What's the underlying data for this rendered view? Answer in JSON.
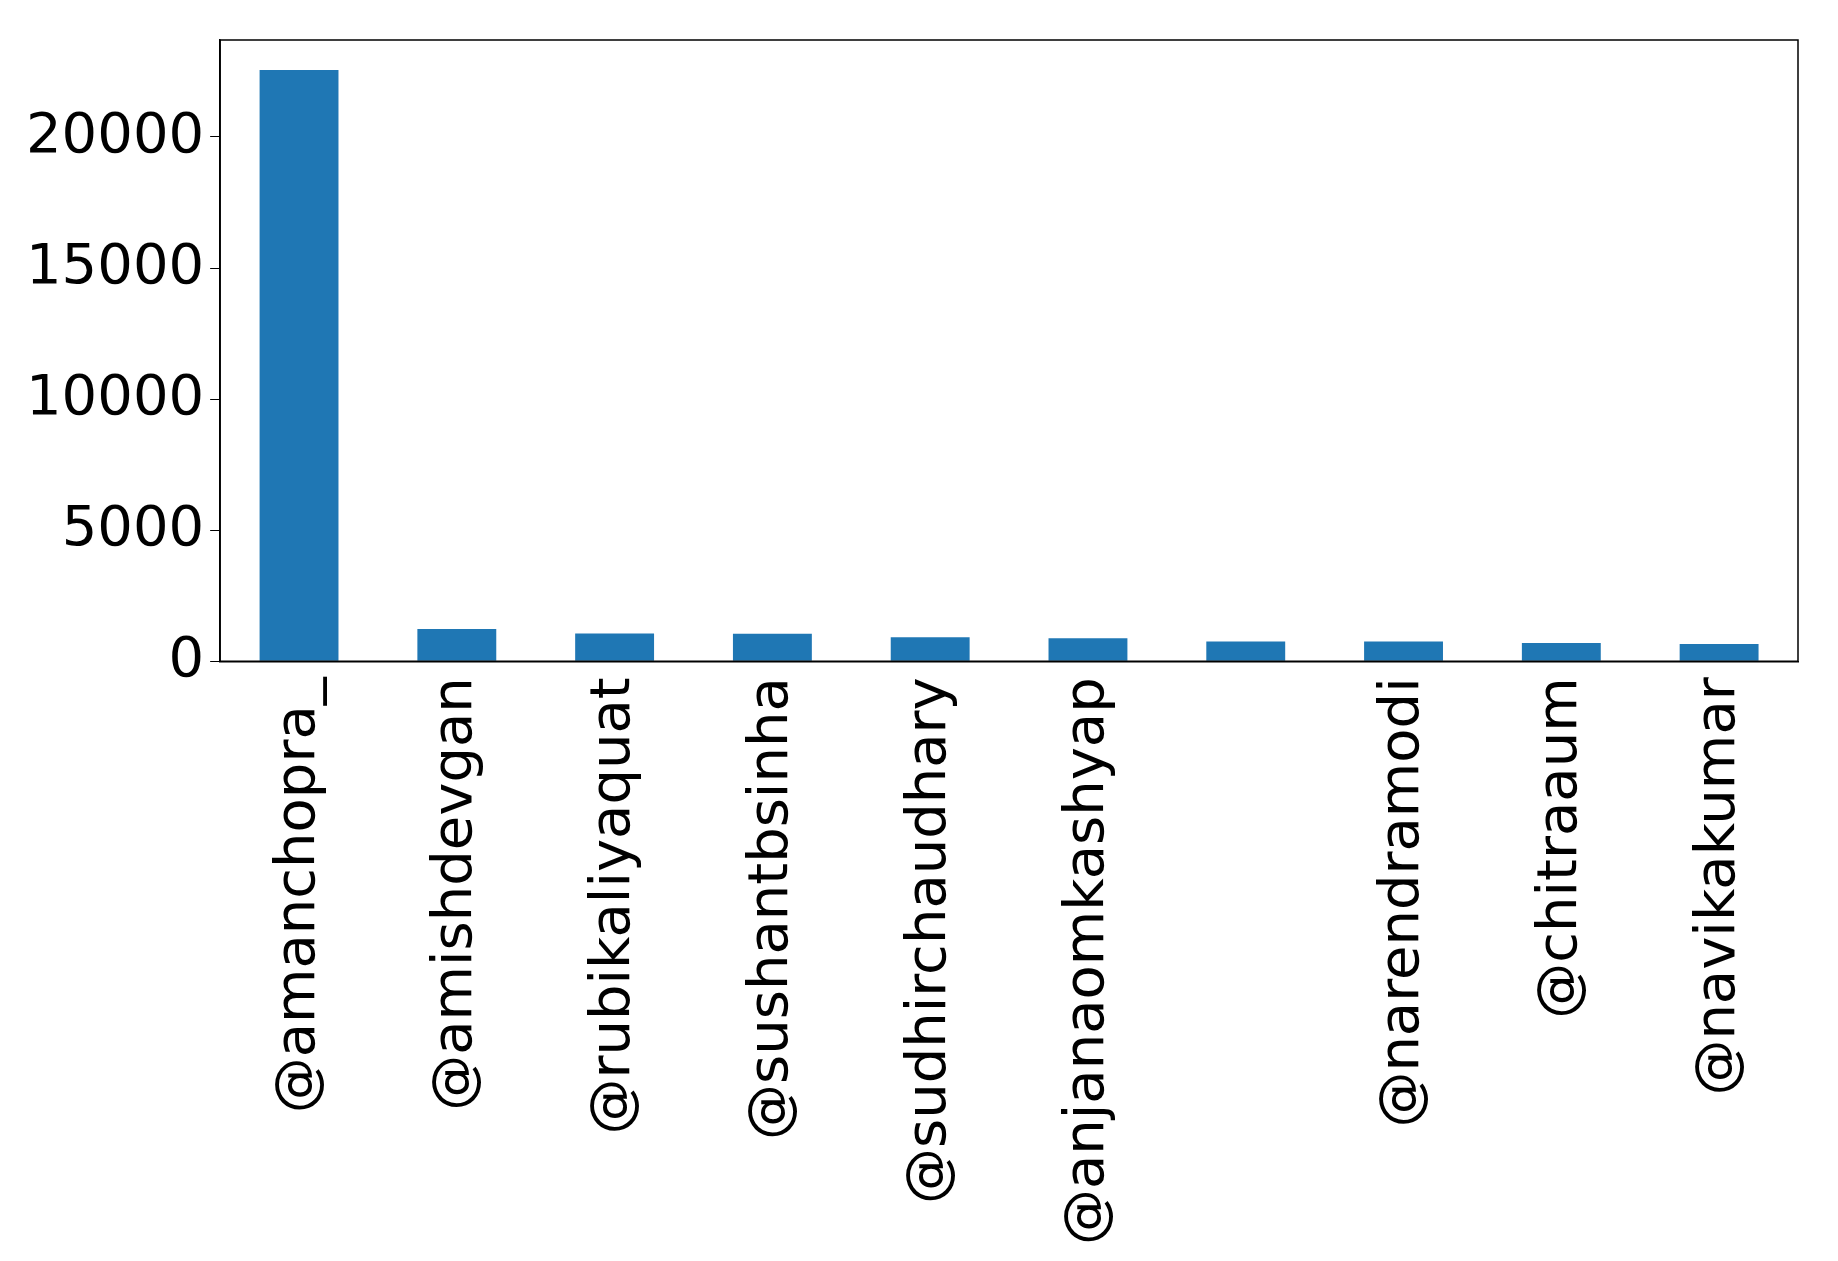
{
  "chart_data": {
    "type": "bar",
    "categories": [
      "@amanchopra_",
      "@amishdevgan",
      "@rubikaliyaquat",
      "@sushantbsinha",
      "@sudhirchaudhary",
      "@anjanaomkashyap",
      null,
      "@narendramodi",
      "@chitraaum",
      "@navikakumar"
    ],
    "values": [
      22560,
      1230,
      1060,
      1050,
      920,
      880,
      750,
      750,
      700,
      660
    ],
    "color": "#1f77b4",
    "ylim": [
      0,
      23700
    ],
    "yticks": [
      0,
      5000,
      10000,
      15000,
      20000
    ],
    "grid": false,
    "legend": false
  }
}
